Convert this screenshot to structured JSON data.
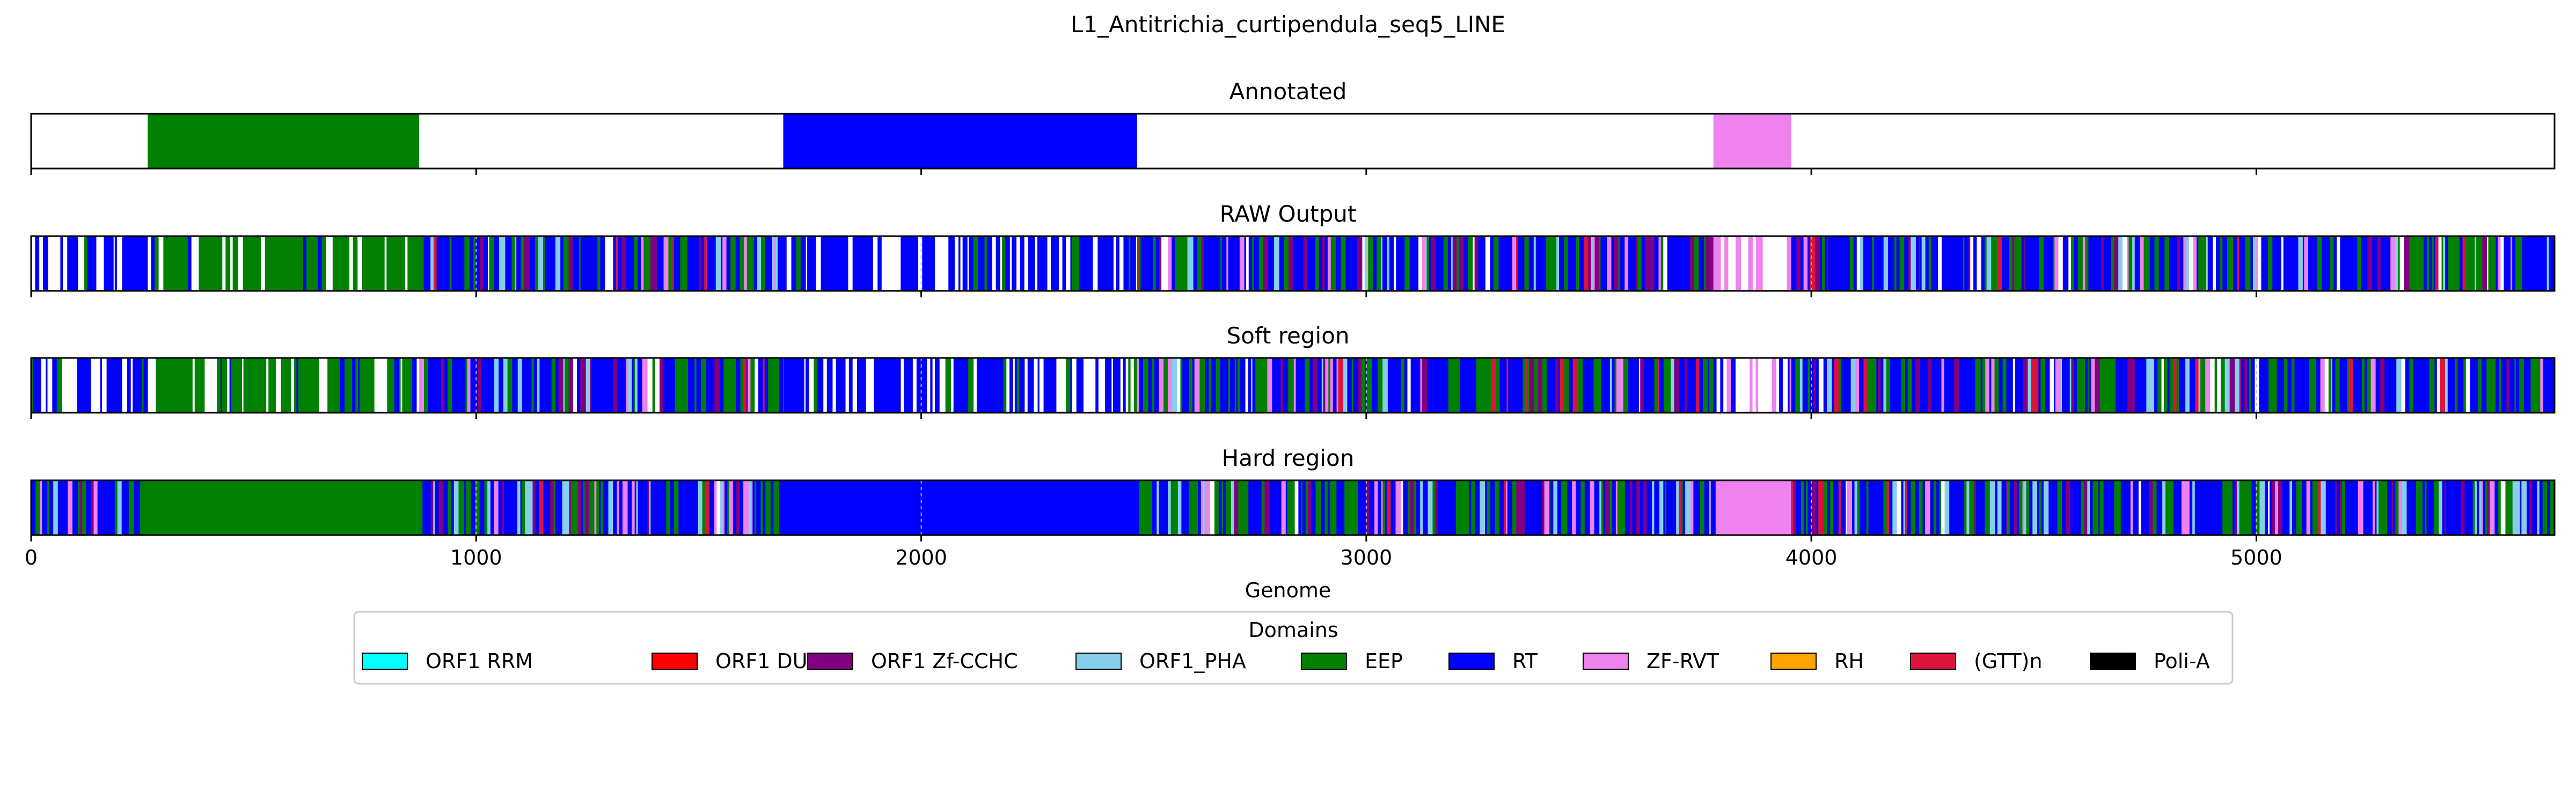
{
  "chart_data": {
    "type": "track",
    "title": "L1_Antitrichia_curtipendula_seq5_LINE",
    "xlabel": "Genome",
    "xlim": [
      0,
      5670
    ],
    "xticks": [
      0,
      1000,
      2000,
      3000,
      4000,
      5000
    ],
    "tick_labels": [
      "0",
      "1000",
      "2000",
      "3000",
      "4000",
      "5000"
    ],
    "legend": {
      "title": "Domains",
      "placement": "bottom-center",
      "entries": [
        {
          "label": "ORF1 RRM",
          "color": "#00ffff"
        },
        {
          "label": "ORF1 DUF",
          "color": "#ff0000"
        },
        {
          "label": "ORF1 Zf-CCHC",
          "color": "#800080"
        },
        {
          "label": "ORF1_PHA",
          "color": "#87ceeb"
        },
        {
          "label": "EEP",
          "color": "#008000"
        },
        {
          "label": "RT",
          "color": "#0000ff"
        },
        {
          "label": "ZF-RVT",
          "color": "#ee82ee"
        },
        {
          "label": "RH",
          "color": "#ffa500"
        },
        {
          "label": "(GTT)n",
          "color": "#dc143c"
        },
        {
          "label": "Poli-A",
          "color": "#000000"
        }
      ]
    },
    "panels": [
      {
        "title": "Annotated",
        "segments": [
          {
            "domain": "EEP",
            "start": 262,
            "end": 872
          },
          {
            "domain": "RT",
            "start": 1690,
            "end": 2485
          },
          {
            "domain": "ZF-RVT",
            "start": 3780,
            "end": 3955
          }
        ]
      },
      {
        "title": "RAW Output",
        "style": "dense",
        "regions": [
          {
            "start": 0,
            "end": 262,
            "base": "RT",
            "gaps": 0.35
          },
          {
            "start": 262,
            "end": 872,
            "base": "EEP",
            "gaps": 0.25
          },
          {
            "start": 872,
            "end": 1690,
            "base": "mixed",
            "gaps": 0.05
          },
          {
            "start": 1690,
            "end": 2485,
            "base": "RT",
            "gaps": 0.25
          },
          {
            "start": 2485,
            "end": 3780,
            "base": "mixed",
            "gaps": 0.05
          },
          {
            "start": 3780,
            "end": 3955,
            "base": "ZF-RVT",
            "gaps": 0.5
          },
          {
            "start": 3955,
            "end": 5670,
            "base": "mixed",
            "gaps": 0.05
          }
        ]
      },
      {
        "title": "Soft region",
        "style": "dense",
        "regions": [
          {
            "start": 0,
            "end": 262,
            "base": "RT",
            "gaps": 0.35
          },
          {
            "start": 262,
            "end": 872,
            "base": "EEP",
            "gaps": 0.25
          },
          {
            "start": 872,
            "end": 1690,
            "base": "mixed",
            "gaps": 0.05
          },
          {
            "start": 1690,
            "end": 2485,
            "base": "RT",
            "gaps": 0.25
          },
          {
            "start": 2485,
            "end": 3780,
            "base": "mixed",
            "gaps": 0.05
          },
          {
            "start": 3780,
            "end": 3955,
            "base": "ZF-RVT",
            "gaps": 0.5
          },
          {
            "start": 3955,
            "end": 5670,
            "base": "mixed",
            "gaps": 0.05
          }
        ]
      },
      {
        "title": "Hard region",
        "style": "dense",
        "regions": [
          {
            "start": 0,
            "end": 245,
            "base": "mixed",
            "gaps": 0.0
          },
          {
            "start": 245,
            "end": 865,
            "base": "EEP",
            "solid": true
          },
          {
            "start": 865,
            "end": 1690,
            "base": "mixed",
            "gaps": 0.02
          },
          {
            "start": 1690,
            "end": 2485,
            "base": "RT",
            "solid": true
          },
          {
            "start": 2485,
            "end": 3785,
            "base": "mixed",
            "gaps": 0.02
          },
          {
            "start": 3785,
            "end": 3945,
            "base": "ZF-RVT",
            "solid": true
          },
          {
            "start": 3945,
            "end": 5670,
            "base": "mixed",
            "gaps": 0.02
          }
        ]
      }
    ]
  }
}
